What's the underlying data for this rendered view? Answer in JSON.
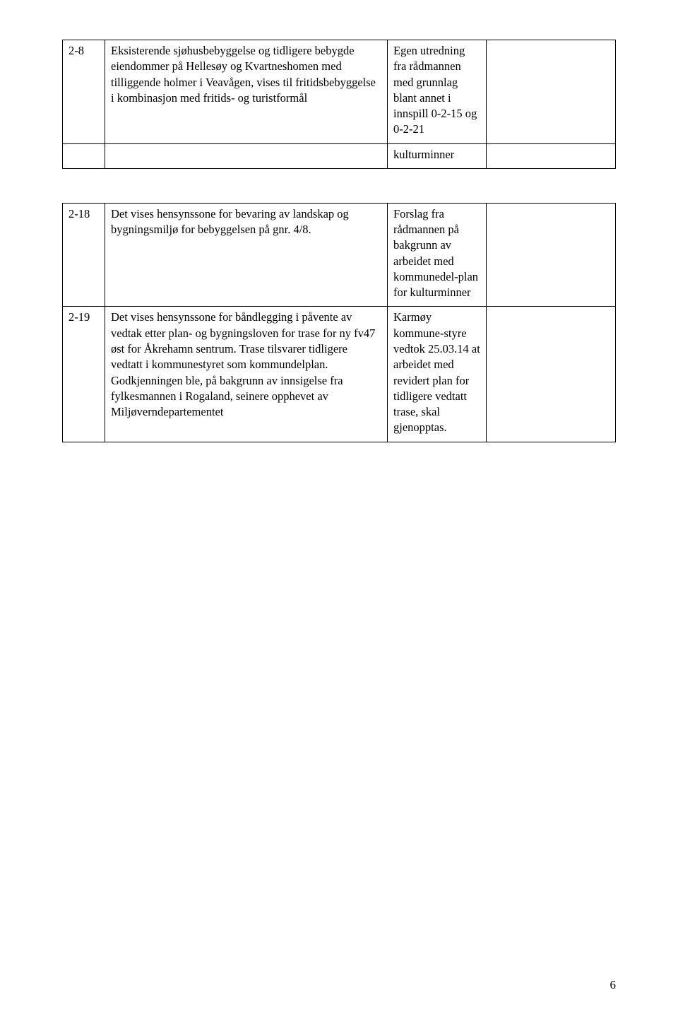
{
  "table1": {
    "row1": {
      "id": "2-8",
      "desc": "Eksisterende sjøhusbebyggelse og tidligere bebygde eiendommer på Hellesøy og Kvartneshomen med tilliggende holmer i Veavågen, vises til fritidsbebyggelse i kombinasjon med fritids- og turistformål",
      "src": "Egen utredning fra rådmannen med grunnlag blant annet i innspill 0-2-15 og 0-2-21"
    },
    "row2": {
      "src": "kulturminner"
    }
  },
  "table2": {
    "row1": {
      "id": "2-18",
      "desc": "Det vises hensynssone for bevaring av landskap og bygningsmiljø for bebyggelsen på gnr. 4/8.",
      "src": "Forslag fra rådmannen på bakgrunn av arbeidet med kommunedel-plan for kulturminner"
    },
    "row2": {
      "id": "2-19",
      "desc": "Det vises hensynssone for båndlegging i påvente av vedtak etter plan- og bygningsloven for trase for ny fv47 øst for Åkrehamn sentrum. Trase tilsvarer tidligere vedtatt i kommunestyret som kommundelplan. Godkjenningen ble, på bakgrunn av innsigelse fra fylkesmannen i Rogaland, seinere opphevet av Miljøverndepartementet",
      "src": "Karmøy kommune-styre vedtok 25.03.14 at arbeidet med revidert plan for tidligere vedtatt trase, skal gjenopptas."
    }
  },
  "pageNumber": "6"
}
